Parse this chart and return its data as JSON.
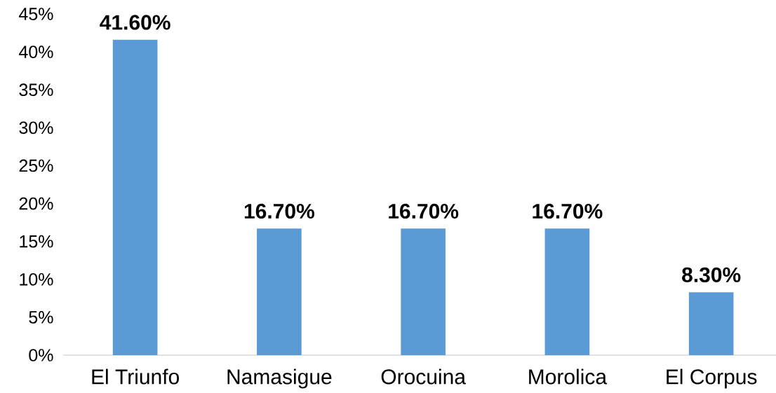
{
  "chart_data": {
    "type": "bar",
    "categories": [
      "El Triunfo",
      "Namasigue",
      "Orocuina",
      "Morolica",
      "El Corpus"
    ],
    "values": [
      41.6,
      16.7,
      16.7,
      16.7,
      8.3
    ],
    "value_labels": [
      "41.60%",
      "16.70%",
      "16.70%",
      "16.70%",
      "8.30%"
    ],
    "color": "#5b9bd5",
    "ylim": [
      0,
      45
    ],
    "yticks": [
      {
        "value": 0,
        "label": "0%"
      },
      {
        "value": 5,
        "label": "5%"
      },
      {
        "value": 10,
        "label": "10%"
      },
      {
        "value": 15,
        "label": "15%"
      },
      {
        "value": 20,
        "label": "20%"
      },
      {
        "value": 25,
        "label": "25%"
      },
      {
        "value": 30,
        "label": "30%"
      },
      {
        "value": 35,
        "label": "35%"
      },
      {
        "value": 40,
        "label": "40%"
      },
      {
        "value": 45,
        "label": "45%"
      }
    ]
  }
}
